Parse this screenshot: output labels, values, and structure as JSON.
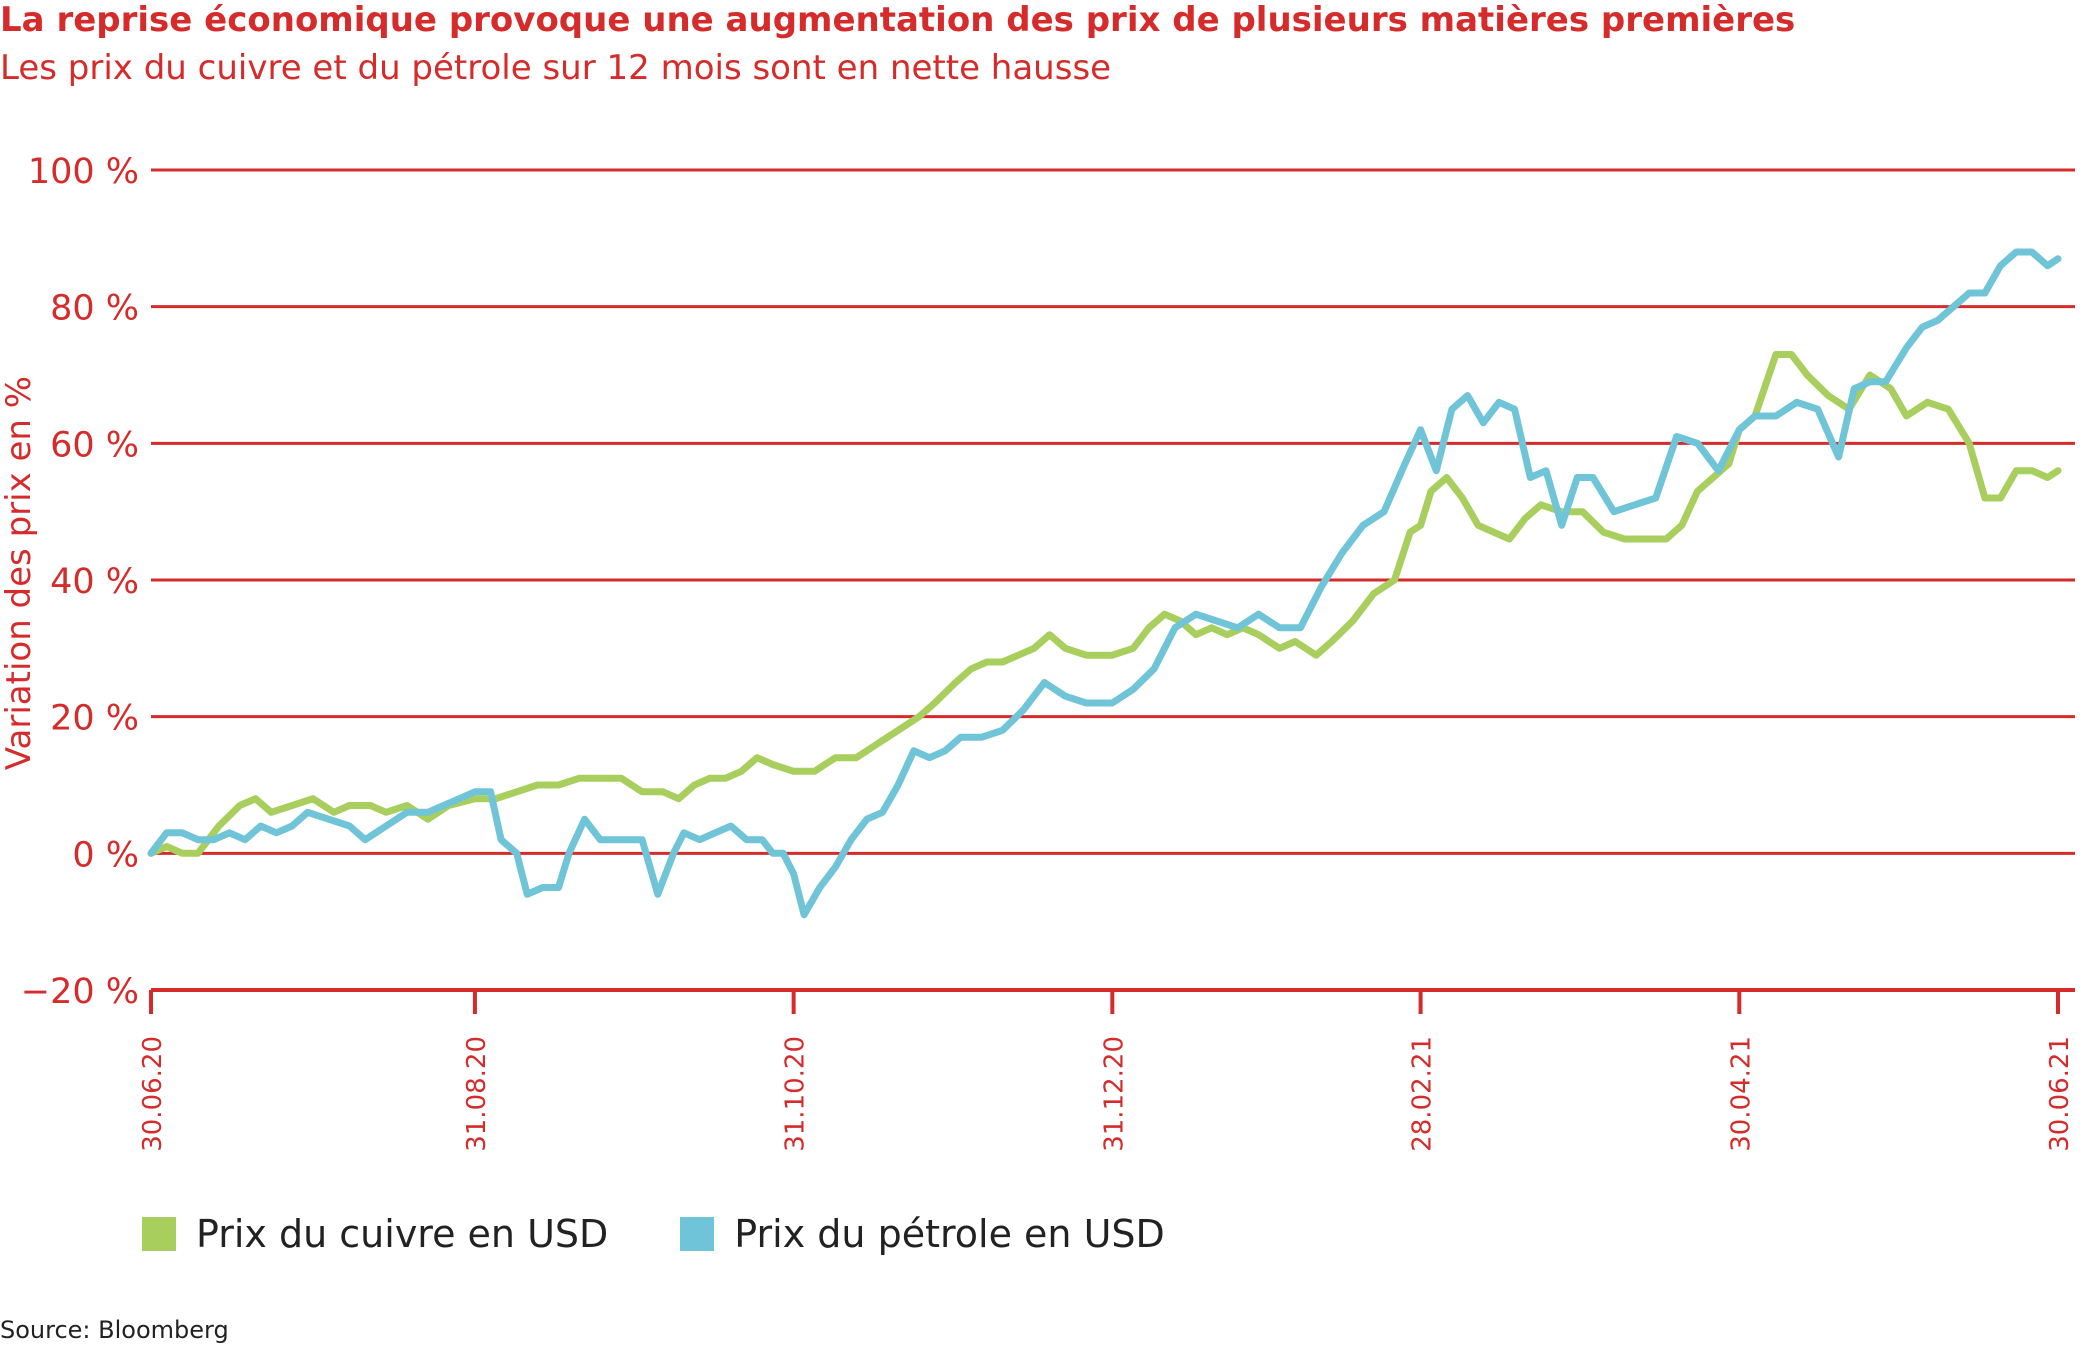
{
  "title": "La reprise économique provoque une augmentation des prix de plusieurs matières premières",
  "subtitle": "Les prix du cuivre et du pétrole sur 12 mois sont en nette hausse",
  "source": "Source: Bloomberg",
  "colors": {
    "accent": "#d52b2b",
    "copper": "#a8cf5d",
    "oil": "#6fc4d8"
  },
  "chart_data": {
    "type": "line",
    "title": "La reprise économique provoque une augmentation des prix de plusieurs matières premières",
    "subtitle": "Les prix du cuivre et du pétrole sur 12 mois sont en nette hausse",
    "xlabel": "",
    "ylabel": "Variation des prix en %",
    "ylim": [
      -20,
      100
    ],
    "xlim": [
      "2020-06-30",
      "2021-06-30"
    ],
    "y_ticks": [
      100,
      80,
      60,
      40,
      20,
      0,
      -20
    ],
    "y_tick_labels": [
      "100 %",
      "80 %",
      "60 %",
      "40 %",
      "20 %",
      "0 %",
      "−20 %"
    ],
    "x_ticks": [
      "2020-06-30",
      "2020-08-31",
      "2020-10-31",
      "2020-12-31",
      "2021-02-28",
      "2021-04-30",
      "2021-06-30"
    ],
    "x_tick_labels": [
      "30.06.20",
      "31.08.20",
      "31.10.20",
      "31.12.20",
      "28.02.21",
      "30.04.21",
      "30.06.21"
    ],
    "grid": "horizontal",
    "legend": "bottom-left",
    "series": [
      {
        "name": "Prix du cuivre en USD",
        "color": "#a8cf5d",
        "points": [
          [
            "2020-06-30",
            0
          ],
          [
            "2020-07-03",
            1
          ],
          [
            "2020-07-06",
            0
          ],
          [
            "2020-07-09",
            0
          ],
          [
            "2020-07-13",
            4
          ],
          [
            "2020-07-17",
            7
          ],
          [
            "2020-07-20",
            8
          ],
          [
            "2020-07-23",
            6
          ],
          [
            "2020-07-27",
            7
          ],
          [
            "2020-07-31",
            8
          ],
          [
            "2020-08-04",
            6
          ],
          [
            "2020-08-07",
            7
          ],
          [
            "2020-08-11",
            7
          ],
          [
            "2020-08-14",
            6
          ],
          [
            "2020-08-18",
            7
          ],
          [
            "2020-08-22",
            5
          ],
          [
            "2020-08-26",
            7
          ],
          [
            "2020-08-31",
            8
          ],
          [
            "2020-09-04",
            8
          ],
          [
            "2020-09-08",
            9
          ],
          [
            "2020-09-12",
            10
          ],
          [
            "2020-09-16",
            10
          ],
          [
            "2020-09-20",
            11
          ],
          [
            "2020-09-24",
            11
          ],
          [
            "2020-09-28",
            11
          ],
          [
            "2020-10-02",
            9
          ],
          [
            "2020-10-06",
            9
          ],
          [
            "2020-10-09",
            8
          ],
          [
            "2020-10-12",
            10
          ],
          [
            "2020-10-15",
            11
          ],
          [
            "2020-10-18",
            11
          ],
          [
            "2020-10-21",
            12
          ],
          [
            "2020-10-24",
            14
          ],
          [
            "2020-10-27",
            13
          ],
          [
            "2020-10-31",
            12
          ],
          [
            "2020-11-04",
            12
          ],
          [
            "2020-11-08",
            14
          ],
          [
            "2020-11-12",
            14
          ],
          [
            "2020-11-16",
            16
          ],
          [
            "2020-11-20",
            18
          ],
          [
            "2020-11-24",
            20
          ],
          [
            "2020-11-27",
            22
          ],
          [
            "2020-12-01",
            25
          ],
          [
            "2020-12-04",
            27
          ],
          [
            "2020-12-07",
            28
          ],
          [
            "2020-12-10",
            28
          ],
          [
            "2020-12-13",
            29
          ],
          [
            "2020-12-16",
            30
          ],
          [
            "2020-12-19",
            32
          ],
          [
            "2020-12-22",
            30
          ],
          [
            "2020-12-26",
            29
          ],
          [
            "2020-12-31",
            29
          ],
          [
            "2021-01-04",
            30
          ],
          [
            "2021-01-07",
            33
          ],
          [
            "2021-01-10",
            35
          ],
          [
            "2021-01-13",
            34
          ],
          [
            "2021-01-16",
            32
          ],
          [
            "2021-01-19",
            33
          ],
          [
            "2021-01-22",
            32
          ],
          [
            "2021-01-25",
            33
          ],
          [
            "2021-01-28",
            32
          ],
          [
            "2021-02-01",
            30
          ],
          [
            "2021-02-04",
            31
          ],
          [
            "2021-02-08",
            29
          ],
          [
            "2021-02-11",
            31
          ],
          [
            "2021-02-15",
            34
          ],
          [
            "2021-02-19",
            38
          ],
          [
            "2021-02-23",
            40
          ],
          [
            "2021-02-26",
            47
          ],
          [
            "2021-02-28",
            48
          ],
          [
            "2021-03-02",
            53
          ],
          [
            "2021-03-05",
            55
          ],
          [
            "2021-03-08",
            52
          ],
          [
            "2021-03-11",
            48
          ],
          [
            "2021-03-14",
            47
          ],
          [
            "2021-03-17",
            46
          ],
          [
            "2021-03-20",
            49
          ],
          [
            "2021-03-23",
            51
          ],
          [
            "2021-03-27",
            50
          ],
          [
            "2021-03-31",
            50
          ],
          [
            "2021-04-04",
            47
          ],
          [
            "2021-04-08",
            46
          ],
          [
            "2021-04-12",
            46
          ],
          [
            "2021-04-16",
            46
          ],
          [
            "2021-04-19",
            48
          ],
          [
            "2021-04-22",
            53
          ],
          [
            "2021-04-25",
            55
          ],
          [
            "2021-04-28",
            57
          ],
          [
            "2021-04-30",
            62
          ],
          [
            "2021-05-03",
            64
          ],
          [
            "2021-05-07",
            73
          ],
          [
            "2021-05-10",
            73
          ],
          [
            "2021-05-13",
            70
          ],
          [
            "2021-05-17",
            67
          ],
          [
            "2021-05-21",
            65
          ],
          [
            "2021-05-25",
            70
          ],
          [
            "2021-05-29",
            68
          ],
          [
            "2021-06-01",
            64
          ],
          [
            "2021-06-05",
            66
          ],
          [
            "2021-06-09",
            65
          ],
          [
            "2021-06-13",
            60
          ],
          [
            "2021-06-16",
            52
          ],
          [
            "2021-06-19",
            52
          ],
          [
            "2021-06-22",
            56
          ],
          [
            "2021-06-25",
            56
          ],
          [
            "2021-06-28",
            55
          ],
          [
            "2021-06-30",
            56
          ]
        ]
      },
      {
        "name": "Prix du pétrole en USD",
        "color": "#6fc4d8",
        "points": [
          [
            "2020-06-30",
            0
          ],
          [
            "2020-07-03",
            3
          ],
          [
            "2020-07-06",
            3
          ],
          [
            "2020-07-09",
            2
          ],
          [
            "2020-07-12",
            2
          ],
          [
            "2020-07-15",
            3
          ],
          [
            "2020-07-18",
            2
          ],
          [
            "2020-07-21",
            4
          ],
          [
            "2020-07-24",
            3
          ],
          [
            "2020-07-27",
            4
          ],
          [
            "2020-07-30",
            6
          ],
          [
            "2020-08-03",
            5
          ],
          [
            "2020-08-07",
            4
          ],
          [
            "2020-08-10",
            2
          ],
          [
            "2020-08-14",
            4
          ],
          [
            "2020-08-18",
            6
          ],
          [
            "2020-08-22",
            6
          ],
          [
            "2020-08-25",
            7
          ],
          [
            "2020-08-28",
            8
          ],
          [
            "2020-08-31",
            9
          ],
          [
            "2020-09-03",
            9
          ],
          [
            "2020-09-05",
            2
          ],
          [
            "2020-09-08",
            0
          ],
          [
            "2020-09-10",
            -6
          ],
          [
            "2020-09-13",
            -5
          ],
          [
            "2020-09-16",
            -5
          ],
          [
            "2020-09-18",
            0
          ],
          [
            "2020-09-21",
            5
          ],
          [
            "2020-09-24",
            2
          ],
          [
            "2020-09-27",
            2
          ],
          [
            "2020-09-30",
            2
          ],
          [
            "2020-10-02",
            2
          ],
          [
            "2020-10-05",
            -6
          ],
          [
            "2020-10-08",
            0
          ],
          [
            "2020-10-10",
            3
          ],
          [
            "2020-10-13",
            2
          ],
          [
            "2020-10-16",
            3
          ],
          [
            "2020-10-19",
            4
          ],
          [
            "2020-10-22",
            2
          ],
          [
            "2020-10-25",
            2
          ],
          [
            "2020-10-27",
            0
          ],
          [
            "2020-10-29",
            0
          ],
          [
            "2020-10-31",
            -3
          ],
          [
            "2020-11-02",
            -9
          ],
          [
            "2020-11-05",
            -5
          ],
          [
            "2020-11-08",
            -2
          ],
          [
            "2020-11-11",
            2
          ],
          [
            "2020-11-14",
            5
          ],
          [
            "2020-11-17",
            6
          ],
          [
            "2020-11-20",
            10
          ],
          [
            "2020-11-23",
            15
          ],
          [
            "2020-11-26",
            14
          ],
          [
            "2020-11-29",
            15
          ],
          [
            "2020-12-02",
            17
          ],
          [
            "2020-12-06",
            17
          ],
          [
            "2020-12-10",
            18
          ],
          [
            "2020-12-14",
            21
          ],
          [
            "2020-12-18",
            25
          ],
          [
            "2020-12-22",
            23
          ],
          [
            "2020-12-26",
            22
          ],
          [
            "2020-12-31",
            22
          ],
          [
            "2021-01-04",
            24
          ],
          [
            "2021-01-08",
            27
          ],
          [
            "2021-01-12",
            33
          ],
          [
            "2021-01-16",
            35
          ],
          [
            "2021-01-20",
            34
          ],
          [
            "2021-01-24",
            33
          ],
          [
            "2021-01-28",
            35
          ],
          [
            "2021-02-01",
            33
          ],
          [
            "2021-02-05",
            33
          ],
          [
            "2021-02-09",
            39
          ],
          [
            "2021-02-13",
            44
          ],
          [
            "2021-02-17",
            48
          ],
          [
            "2021-02-21",
            50
          ],
          [
            "2021-02-25",
            57
          ],
          [
            "2021-02-28",
            62
          ],
          [
            "2021-03-03",
            56
          ],
          [
            "2021-03-06",
            65
          ],
          [
            "2021-03-09",
            67
          ],
          [
            "2021-03-12",
            63
          ],
          [
            "2021-03-15",
            66
          ],
          [
            "2021-03-18",
            65
          ],
          [
            "2021-03-21",
            55
          ],
          [
            "2021-03-24",
            56
          ],
          [
            "2021-03-27",
            48
          ],
          [
            "2021-03-30",
            55
          ],
          [
            "2021-04-02",
            55
          ],
          [
            "2021-04-06",
            50
          ],
          [
            "2021-04-10",
            51
          ],
          [
            "2021-04-14",
            52
          ],
          [
            "2021-04-18",
            61
          ],
          [
            "2021-04-22",
            60
          ],
          [
            "2021-04-26",
            56
          ],
          [
            "2021-04-30",
            62
          ],
          [
            "2021-05-03",
            64
          ],
          [
            "2021-05-07",
            64
          ],
          [
            "2021-05-11",
            66
          ],
          [
            "2021-05-15",
            65
          ],
          [
            "2021-05-19",
            58
          ],
          [
            "2021-05-22",
            68
          ],
          [
            "2021-05-25",
            69
          ],
          [
            "2021-05-28",
            69
          ],
          [
            "2021-06-01",
            74
          ],
          [
            "2021-06-04",
            77
          ],
          [
            "2021-06-07",
            78
          ],
          [
            "2021-06-10",
            80
          ],
          [
            "2021-06-13",
            82
          ],
          [
            "2021-06-16",
            82
          ],
          [
            "2021-06-19",
            86
          ],
          [
            "2021-06-22",
            88
          ],
          [
            "2021-06-25",
            88
          ],
          [
            "2021-06-28",
            86
          ],
          [
            "2021-06-30",
            87
          ]
        ]
      }
    ]
  }
}
